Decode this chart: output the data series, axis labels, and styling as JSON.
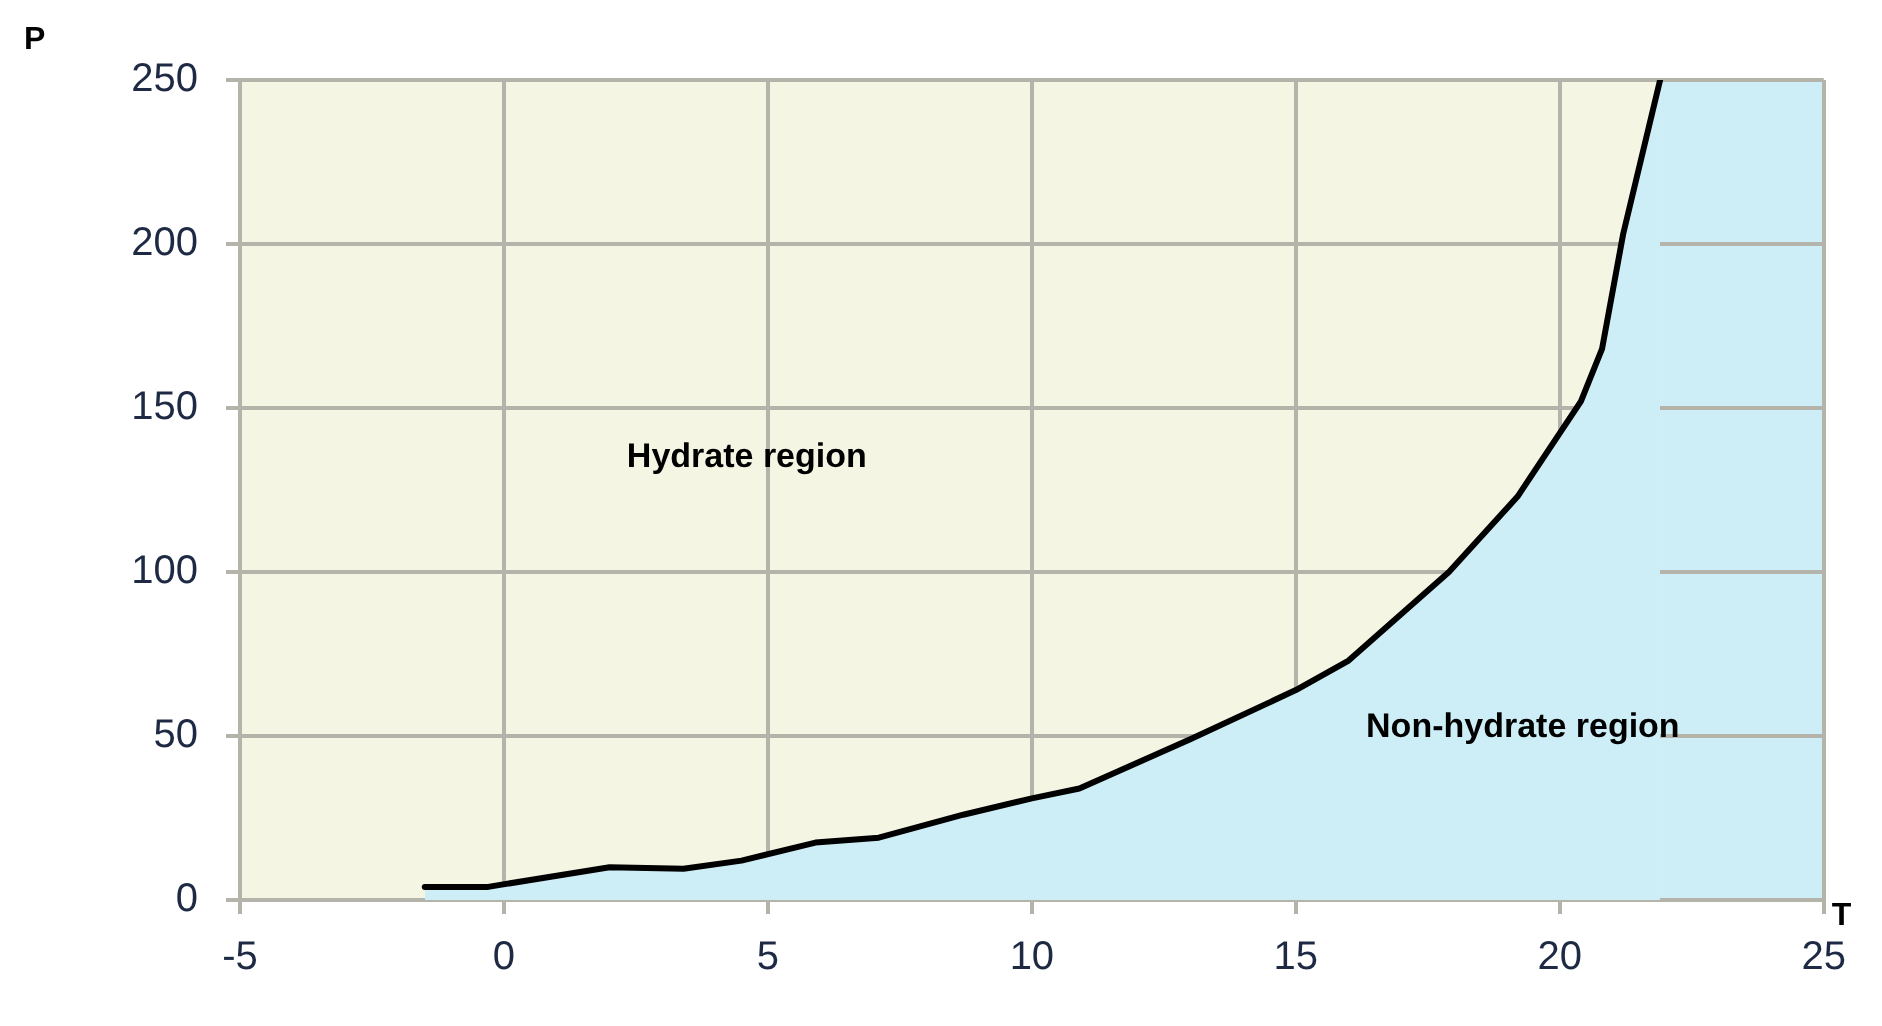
{
  "chart_data": {
    "type": "area",
    "xlabel": "T",
    "ylabel": "P",
    "x": [
      -1.5,
      -0.3,
      2.0,
      3.4,
      4.5,
      5.9,
      7.1,
      8.7,
      10.0,
      10.9,
      13.0,
      15.0,
      16.0,
      17.9,
      19.2,
      20.4,
      20.8,
      21.2,
      21.9
    ],
    "series": [
      {
        "color": "#cdeef6",
        "values": [
          4,
          4,
          10,
          9.5,
          12,
          17.5,
          19,
          26,
          31,
          34,
          49,
          64,
          73,
          100,
          123,
          152,
          168,
          203,
          250
        ]
      }
    ],
    "annotations": [
      "Hydrate region",
      "Non-hydrate region"
    ],
    "xlim": [
      -5,
      25
    ],
    "xticks": [
      -5,
      0,
      5,
      10,
      15,
      20,
      25
    ],
    "ylim": [
      0,
      250
    ],
    "yticks": [
      0,
      50,
      100,
      150,
      200,
      250
    ],
    "bands": [
      {
        "axis": "x",
        "from": 21.9,
        "to": 25,
        "color": "#cdeef6"
      }
    ],
    "grid": true,
    "legend": false,
    "marker": "none",
    "line_style": "solid"
  }
}
